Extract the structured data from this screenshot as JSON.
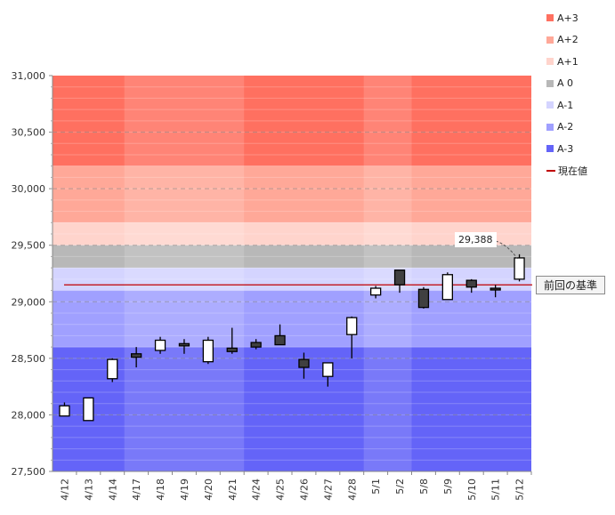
{
  "chart_data": {
    "type": "candlestick",
    "categories": [
      "4/12",
      "4/13",
      "4/14",
      "4/17",
      "4/18",
      "4/19",
      "4/20",
      "4/21",
      "4/24",
      "4/25",
      "4/26",
      "4/27",
      "4/28",
      "5/1",
      "5/2",
      "5/8",
      "5/9",
      "5/10",
      "5/11",
      "5/12"
    ],
    "candles": [
      {
        "open": 27990,
        "close": 28080,
        "high": 28110,
        "low": 27990
      },
      {
        "open": 27950,
        "close": 28150,
        "high": 28150,
        "low": 27950
      },
      {
        "open": 28320,
        "close": 28490,
        "high": 28500,
        "low": 28290
      },
      {
        "open": 28540,
        "close": 28510,
        "high": 28600,
        "low": 28420
      },
      {
        "open": 28570,
        "close": 28660,
        "high": 28690,
        "low": 28540
      },
      {
        "open": 28630,
        "close": 28610,
        "high": 28670,
        "low": 28540
      },
      {
        "open": 28470,
        "close": 28660,
        "high": 28690,
        "low": 28450
      },
      {
        "open": 28590,
        "close": 28560,
        "high": 28770,
        "low": 28540
      },
      {
        "open": 28640,
        "close": 28600,
        "high": 28670,
        "low": 28580
      },
      {
        "open": 28700,
        "close": 28620,
        "high": 28800,
        "low": 28620
      },
      {
        "open": 28490,
        "close": 28420,
        "high": 28550,
        "low": 28320
      },
      {
        "open": 28340,
        "close": 28460,
        "high": 28460,
        "low": 28250
      },
      {
        "open": 28710,
        "close": 28860,
        "high": 28870,
        "low": 28500
      },
      {
        "open": 29060,
        "close": 29120,
        "high": 29140,
        "low": 29030
      },
      {
        "open": 29280,
        "close": 29150,
        "high": 29280,
        "low": 29080
      },
      {
        "open": 29110,
        "close": 28950,
        "high": 29130,
        "low": 28940
      },
      {
        "open": 29020,
        "close": 29240,
        "high": 29260,
        "low": 29020
      },
      {
        "open": 29190,
        "close": 29130,
        "high": 29200,
        "low": 29080
      },
      {
        "open": 29120,
        "close": 29110,
        "high": 29150,
        "low": 29040
      },
      {
        "open": 29200,
        "close": 29388,
        "high": 29420,
        "low": 29180
      }
    ],
    "ylim": [
      27500,
      31000
    ],
    "yticks": [
      "27,500",
      "28,000",
      "28,500",
      "29,000",
      "29,500",
      "30,000",
      "30,500",
      "31,000"
    ],
    "ytick_values": [
      27500,
      28000,
      28500,
      29000,
      29500,
      30000,
      30500,
      31000
    ],
    "bands": [
      {
        "name": "A+3",
        "from": 30200,
        "to": 31000,
        "color": "#ff7060"
      },
      {
        "name": "A+2",
        "from": 29700,
        "to": 30200,
        "color": "#ffa898"
      },
      {
        "name": "A+1",
        "from": 29500,
        "to": 29700,
        "color": "#ffd4cc"
      },
      {
        "name": "A 0",
        "from": 29300,
        "to": 29500,
        "color": "#b8b8b8"
      },
      {
        "name": "A-1",
        "from": 29100,
        "to": 29300,
        "color": "#d4d4ff"
      },
      {
        "name": "A-2",
        "from": 28600,
        "to": 29100,
        "color": "#a0a0ff"
      },
      {
        "name": "A-3",
        "from": 27500,
        "to": 28600,
        "color": "#6464f8"
      }
    ],
    "column_shading": [
      {
        "from_index": 0,
        "to_index": 2,
        "shade": "dark"
      },
      {
        "from_index": 3,
        "to_index": 7,
        "shade": "light"
      },
      {
        "from_index": 8,
        "to_index": 12,
        "shade": "dark"
      },
      {
        "from_index": 13,
        "to_index": 14,
        "shade": "light"
      },
      {
        "from_index": 15,
        "to_index": 19,
        "shade": "dark"
      }
    ],
    "reference_line": {
      "value": 29150,
      "label": "前回の基準",
      "color": "#c00000"
    },
    "current_value": {
      "value": 29388,
      "label": "29,388",
      "index": 19
    },
    "legend": [
      {
        "label": "A+3",
        "color": "#ff7060",
        "kind": "box"
      },
      {
        "label": "A+2",
        "color": "#ffa898",
        "kind": "box"
      },
      {
        "label": "A+1",
        "color": "#ffd4cc",
        "kind": "box"
      },
      {
        "label": "A 0",
        "color": "#b8b8b8",
        "kind": "box"
      },
      {
        "label": "A-1",
        "color": "#d4d4ff",
        "kind": "box"
      },
      {
        "label": "A-2",
        "color": "#a0a0ff",
        "kind": "box"
      },
      {
        "label": "A-3",
        "color": "#6464f8",
        "kind": "box"
      },
      {
        "label": "現在値",
        "color": "#c00000",
        "kind": "line"
      }
    ],
    "grid": true,
    "legend_position": "right"
  }
}
